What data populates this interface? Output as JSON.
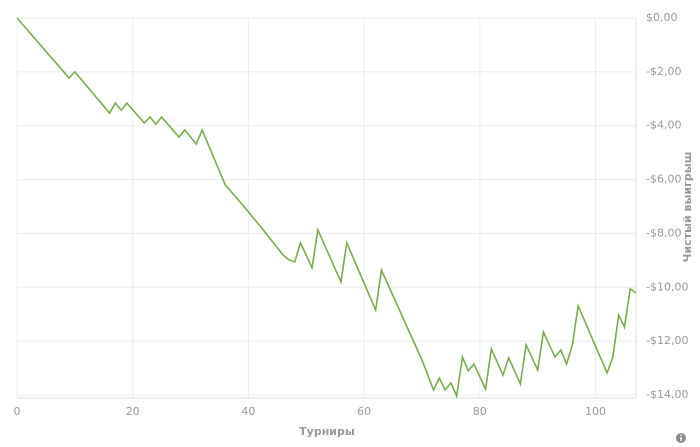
{
  "chart_data": {
    "type": "line",
    "x_label": "Турниры",
    "y_label": "Чистый выигрыш",
    "xlim": [
      0,
      107
    ],
    "xticks": [
      0,
      20,
      40,
      60,
      80,
      100
    ],
    "ylim": [
      -14,
      0
    ],
    "yticks": [
      {
        "value": 0,
        "label": "$0,00"
      },
      {
        "value": -2,
        "label": "-$2,00"
      },
      {
        "value": -4,
        "label": "-$4,00"
      },
      {
        "value": -6,
        "label": "-$6,00"
      },
      {
        "value": -8,
        "label": "-$8,00"
      },
      {
        "value": -10,
        "label": "-$10,00"
      },
      {
        "value": -12,
        "label": "-$12,00"
      },
      {
        "value": -14,
        "label": "-$14,00"
      }
    ],
    "grid": true,
    "series": [
      {
        "color": "#7aab52",
        "x": [
          0,
          9,
          10,
          16,
          17,
          18,
          19,
          22,
          23,
          24,
          25,
          28,
          29,
          31,
          32,
          36,
          39,
          42,
          46,
          47,
          48,
          49,
          51,
          52,
          56,
          57,
          62,
          63,
          70,
          72,
          73,
          74,
          75,
          76,
          77,
          78,
          79,
          81,
          82,
          84,
          85,
          87,
          88,
          90,
          91,
          93,
          94,
          95,
          96,
          97,
          102,
          103,
          104,
          105,
          106,
          107
        ],
        "values": [
          0,
          -2.23,
          -2.0,
          -3.53,
          -3.16,
          -3.42,
          -3.16,
          -3.9,
          -3.68,
          -3.94,
          -3.68,
          -4.42,
          -4.16,
          -4.68,
          -4.16,
          -6.2,
          -6.94,
          -7.72,
          -8.8,
          -8.98,
          -9.06,
          -8.35,
          -9.28,
          -7.87,
          -9.8,
          -8.35,
          -10.84,
          -9.36,
          -12.7,
          -13.81,
          -13.37,
          -13.81,
          -13.55,
          -14.04,
          -12.59,
          -13.1,
          -12.85,
          -13.78,
          -12.29,
          -13.26,
          -12.62,
          -13.59,
          -12.14,
          -13.07,
          -11.66,
          -12.59,
          -12.33,
          -12.85,
          -12.14,
          -10.69,
          -13.18,
          -12.59,
          -11.03,
          -11.48,
          -10.06,
          -10.21
        ]
      }
    ]
  }
}
